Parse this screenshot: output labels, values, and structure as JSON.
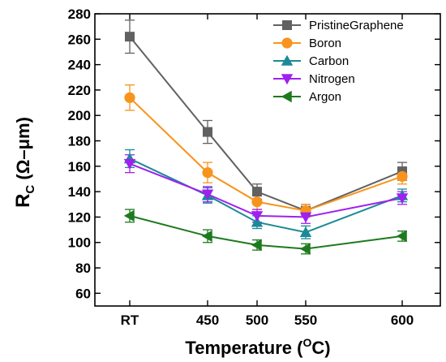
{
  "chart_data": {
    "type": "line",
    "categories": [
      "RT",
      "450",
      "500",
      "550",
      "600"
    ],
    "xlabel": {
      "main": "Temperature (",
      "sup": "O",
      "tail": "C)"
    },
    "ylabel": {
      "main": "R",
      "sub": "C",
      "tail": " (Ω–μm)"
    },
    "ylim": [
      50,
      280
    ],
    "yticks": [
      60,
      80,
      100,
      120,
      140,
      160,
      180,
      200,
      220,
      240,
      260,
      280
    ],
    "legend_position": "top-right",
    "grid": false,
    "series": [
      {
        "name": "PristineGraphene",
        "color": "#616161",
        "marker": "square",
        "values": [
          262,
          187,
          140,
          125,
          156
        ],
        "errors": [
          13,
          9,
          6,
          5,
          7
        ]
      },
      {
        "name": "Boron",
        "color": "#f7941d",
        "marker": "circle",
        "values": [
          214,
          155,
          132,
          125,
          152
        ],
        "errors": [
          10,
          8,
          6,
          5,
          6
        ]
      },
      {
        "name": "Carbon",
        "color": "#1a8a96",
        "marker": "triangle-up",
        "values": [
          166,
          137,
          116,
          108,
          137
        ],
        "errors": [
          7,
          6,
          5,
          5,
          5
        ]
      },
      {
        "name": "Nitrogen",
        "color": "#a020f0",
        "marker": "triangle-down",
        "values": [
          162,
          138,
          121,
          120,
          135
        ],
        "errors": [
          7,
          6,
          5,
          5,
          5
        ]
      },
      {
        "name": "Argon",
        "color": "#1e7a1e",
        "marker": "triangle-left",
        "values": [
          121,
          105,
          98,
          95,
          105
        ],
        "errors": [
          5,
          5,
          4,
          4,
          4
        ]
      }
    ]
  }
}
